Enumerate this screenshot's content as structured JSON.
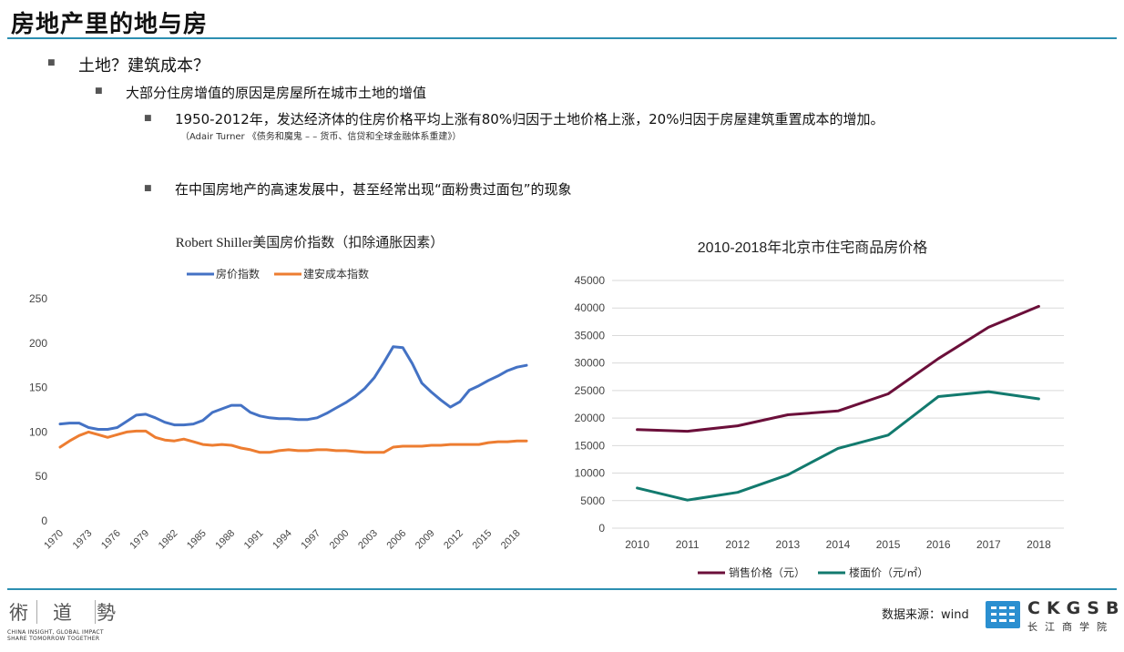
{
  "page": {
    "title": "房地产里的地与房",
    "bullet_l1": "土地？建筑成本？",
    "bullet_l2": "大部分住房增值的原因是房屋所在城市土地的增值",
    "bullet_l3a": "1950-2012年，发达经济体的住房价格平均上涨有80%归因于土地价格上涨，20%归因于房屋建筑重置成本的增加。",
    "citation": "（Adair Turner 《债务和魔鬼 – – 货币、信贷和全球金融体系重建》）",
    "bullet_l3b": "在中国房地产的高速发展中，甚至经常出现“面粉贵过面包”的现象"
  },
  "footer": {
    "source": "数据来源：wind",
    "logo_left_chars": [
      "術",
      "道",
      "勢"
    ],
    "logo_left_sub1": "CHINA INSIGHT, GLOBAL IMPACT",
    "logo_left_sub2": "SHARE TOMORROW TOGETHER",
    "ckgsb_text": "CKGSB",
    "ckgsb_cn": "长江商学院"
  },
  "colors": {
    "rule": "#2c8fb1",
    "house": "#4472c4",
    "cost": "#ed7d31",
    "sales": "#6b0f3a",
    "floor": "#127a6e",
    "ckgsb": "#2b8fd0"
  },
  "chart_data": [
    {
      "type": "line",
      "title": "Robert Shiller美国房价指数（扣除通胀因素）",
      "x_ticks": [
        "1970",
        "1973",
        "1976",
        "1979",
        "1982",
        "1985",
        "1988",
        "1991",
        "1994",
        "1997",
        "2000",
        "2003",
        "2006",
        "2009",
        "2012",
        "2015",
        "2018"
      ],
      "x_range": [
        1970,
        2019
      ],
      "ylim": [
        0,
        250
      ],
      "y_ticks": [
        "0",
        "50",
        "100",
        "150",
        "200",
        "250"
      ],
      "legend_position": "top",
      "series": [
        {
          "name": "房价指数",
          "x": [
            1970,
            1971,
            1972,
            1973,
            1974,
            1975,
            1976,
            1977,
            1978,
            1979,
            1980,
            1981,
            1982,
            1983,
            1984,
            1985,
            1986,
            1987,
            1988,
            1989,
            1990,
            1991,
            1992,
            1993,
            1994,
            1995,
            1996,
            1997,
            1998,
            1999,
            2000,
            2001,
            2002,
            2003,
            2004,
            2005,
            2006,
            2007,
            2008,
            2009,
            2010,
            2011,
            2012,
            2013,
            2014,
            2015,
            2016,
            2017,
            2018,
            2019
          ],
          "values": [
            109,
            110,
            110,
            105,
            103,
            103,
            105,
            112,
            119,
            120,
            116,
            111,
            108,
            108,
            109,
            113,
            122,
            126,
            130,
            130,
            122,
            118,
            116,
            115,
            115,
            114,
            114,
            116,
            121,
            127,
            133,
            140,
            149,
            161,
            178,
            196,
            195,
            177,
            155,
            145,
            136,
            128,
            134,
            147,
            152,
            158,
            163,
            169,
            173,
            175
          ]
        },
        {
          "name": "建安成本指数",
          "x": [
            1970,
            1971,
            1972,
            1973,
            1974,
            1975,
            1976,
            1977,
            1978,
            1979,
            1980,
            1981,
            1982,
            1983,
            1984,
            1985,
            1986,
            1987,
            1988,
            1989,
            1990,
            1991,
            1992,
            1993,
            1994,
            1995,
            1996,
            1997,
            1998,
            1999,
            2000,
            2001,
            2002,
            2003,
            2004,
            2005,
            2006,
            2007,
            2008,
            2009,
            2010,
            2011,
            2012,
            2013,
            2014,
            2015,
            2016,
            2017,
            2018,
            2019
          ],
          "values": [
            83,
            90,
            96,
            100,
            97,
            94,
            97,
            100,
            101,
            101,
            94,
            91,
            90,
            92,
            89,
            86,
            85,
            86,
            85,
            82,
            80,
            77,
            77,
            79,
            80,
            79,
            79,
            80,
            80,
            79,
            79,
            78,
            77,
            77,
            77,
            83,
            84,
            84,
            84,
            85,
            85,
            86,
            86,
            86,
            86,
            88,
            89,
            89,
            90,
            90
          ]
        }
      ]
    },
    {
      "type": "line",
      "title": "2010-2018年北京市住宅商品房价格",
      "categories": [
        "2010",
        "2011",
        "2012",
        "2013",
        "2014",
        "2015",
        "2016",
        "2017",
        "2018"
      ],
      "ylim": [
        0,
        45000
      ],
      "y_ticks": [
        "0",
        "5000",
        "10000",
        "15000",
        "20000",
        "25000",
        "30000",
        "35000",
        "40000",
        "45000"
      ],
      "legend_position": "bottom",
      "series": [
        {
          "name": "销售价格（元）",
          "values": [
            17900,
            17600,
            18600,
            20600,
            21300,
            24400,
            30800,
            36500,
            40300
          ]
        },
        {
          "name": "楼面价（元/㎡）",
          "values": [
            7300,
            5100,
            6500,
            9700,
            14500,
            16900,
            23900,
            24800,
            23500
          ]
        }
      ]
    }
  ]
}
